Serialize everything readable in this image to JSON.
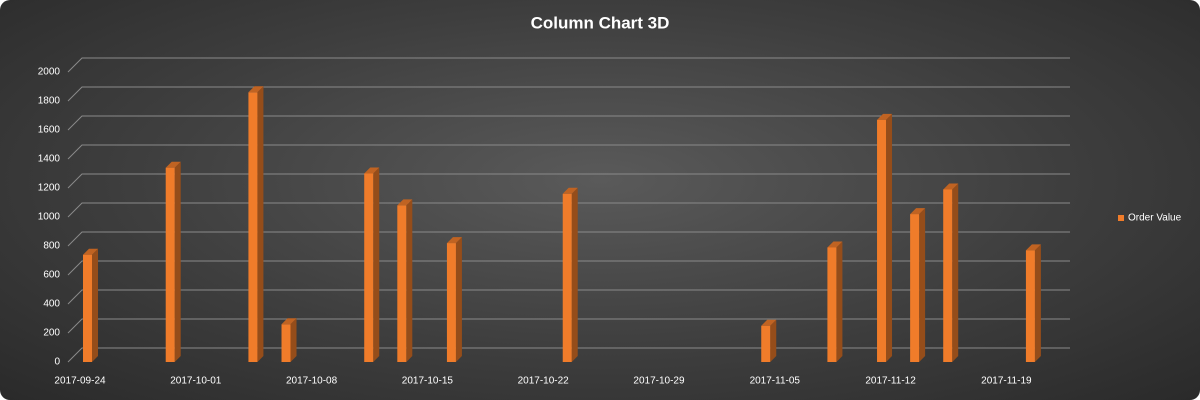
{
  "chart_data": {
    "type": "bar3d",
    "title": "Column  Chart  3D",
    "x": [
      "2017-09-24",
      "2017-09-29",
      "2017-10-04",
      "2017-10-06",
      "2017-10-11",
      "2017-10-13",
      "2017-10-16",
      "2017-10-23",
      "2017-11-04",
      "2017-11-08",
      "2017-11-11",
      "2017-11-13",
      "2017-11-15",
      "2017-11-20"
    ],
    "series": [
      {
        "name": "Order Value",
        "color": "#f07c2a",
        "values": [
          740,
          1340,
          1860,
          260,
          1300,
          1080,
          820,
          1160,
          250,
          790,
          1670,
          1020,
          1190,
          770
        ]
      }
    ],
    "xlim": [
      "2017-09-24",
      "2017-11-22"
    ],
    "xticks": [
      "2017-09-24",
      "2017-10-01",
      "2017-10-08",
      "2017-10-15",
      "2017-10-22",
      "2017-10-29",
      "2017-11-05",
      "2017-11-12",
      "2017-11-19"
    ],
    "ylim": [
      0,
      2000
    ],
    "yticks": [
      0,
      200,
      400,
      600,
      800,
      1000,
      1200,
      1400,
      1600,
      1800,
      2000
    ],
    "grid": true,
    "legend": "right"
  }
}
